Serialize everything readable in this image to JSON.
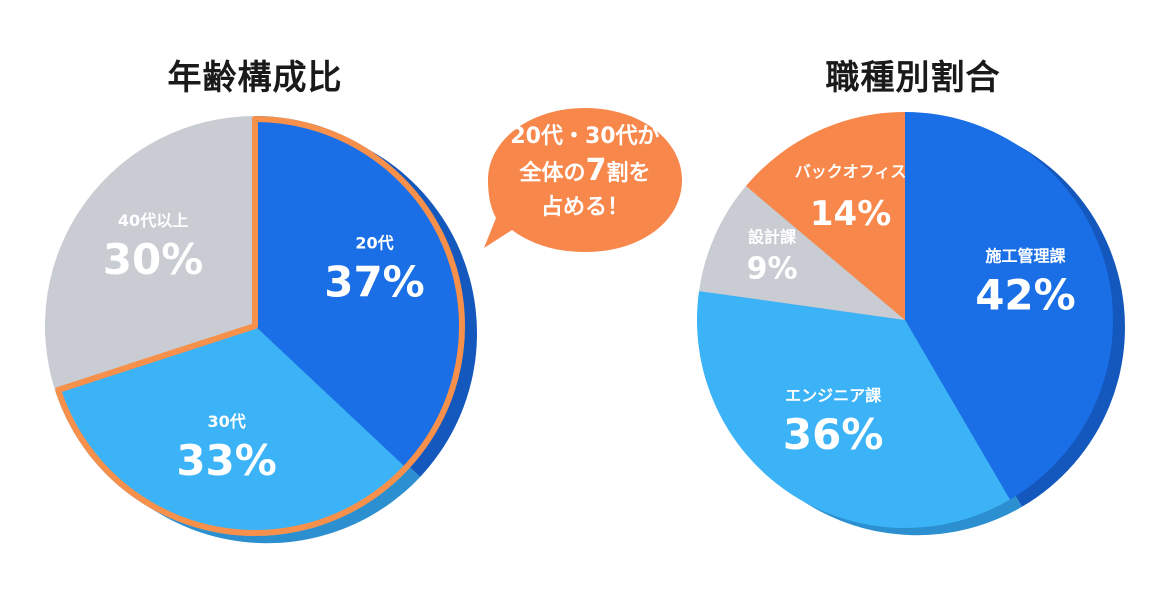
{
  "chart_data": [
    {
      "type": "pie",
      "title": "年齢構成比",
      "slices": [
        {
          "label": "20代",
          "value": 37,
          "value_label": "37%",
          "color": "#1a6fe6",
          "dark": "#1457bd"
        },
        {
          "label": "30代",
          "value": 33,
          "value_label": "33%",
          "color": "#3cb3f7",
          "dark": "#2b8fd0"
        },
        {
          "label": "40代以上",
          "value": 30,
          "value_label": "30%",
          "color": "#c9ccd3",
          "dark": "#a9adb6"
        }
      ],
      "highlight_color": "#f7904a",
      "highlighted": [
        "20代",
        "30代"
      ]
    },
    {
      "type": "pie",
      "title": "職種別割合",
      "slices": [
        {
          "label": "施工管理課",
          "value": 42,
          "value_label": "42%",
          "color": "#1a6fe6",
          "dark": "#1457bd"
        },
        {
          "label": "エンジニア課",
          "value": 36,
          "value_label": "36%",
          "color": "#3cb3f7",
          "dark": "#2b8fd0"
        },
        {
          "label": "設計課",
          "value": 9,
          "value_label": "9%",
          "color": "#c9ccd3",
          "dark": "#a9adb6"
        },
        {
          "label": "バックオフィス",
          "value": 14,
          "value_label": "14%",
          "color": "#f7874a",
          "dark": "#d96c30"
        }
      ]
    }
  ],
  "callout": {
    "line1": "20代・30代が",
    "line2_pre": "全体の",
    "line2_num": "7",
    "line2_post": "割を",
    "line3": "占める！",
    "color": "#f7874a"
  }
}
